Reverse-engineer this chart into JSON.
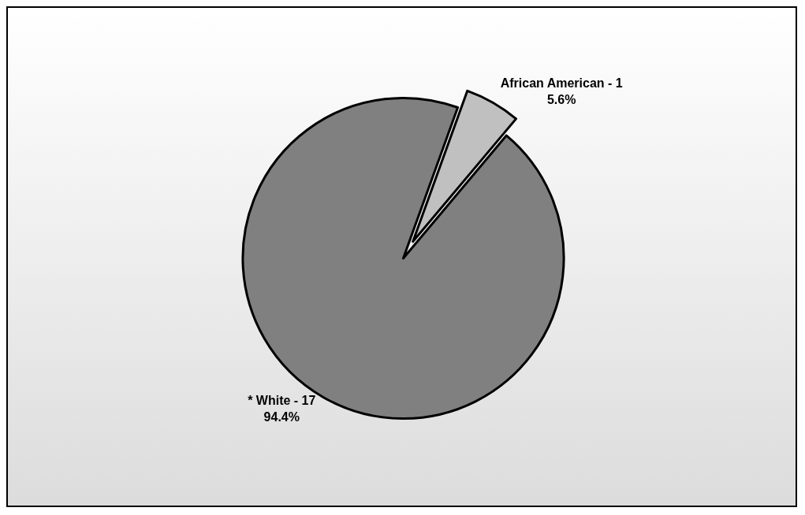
{
  "chart_data": {
    "type": "pie",
    "categories": [
      "* White - 17",
      "African American - 1"
    ],
    "values": [
      94.4,
      5.6
    ],
    "value_labels": [
      "94.4%",
      "5.6%"
    ],
    "colors": [
      "#808080",
      "#c0c0c0"
    ]
  }
}
